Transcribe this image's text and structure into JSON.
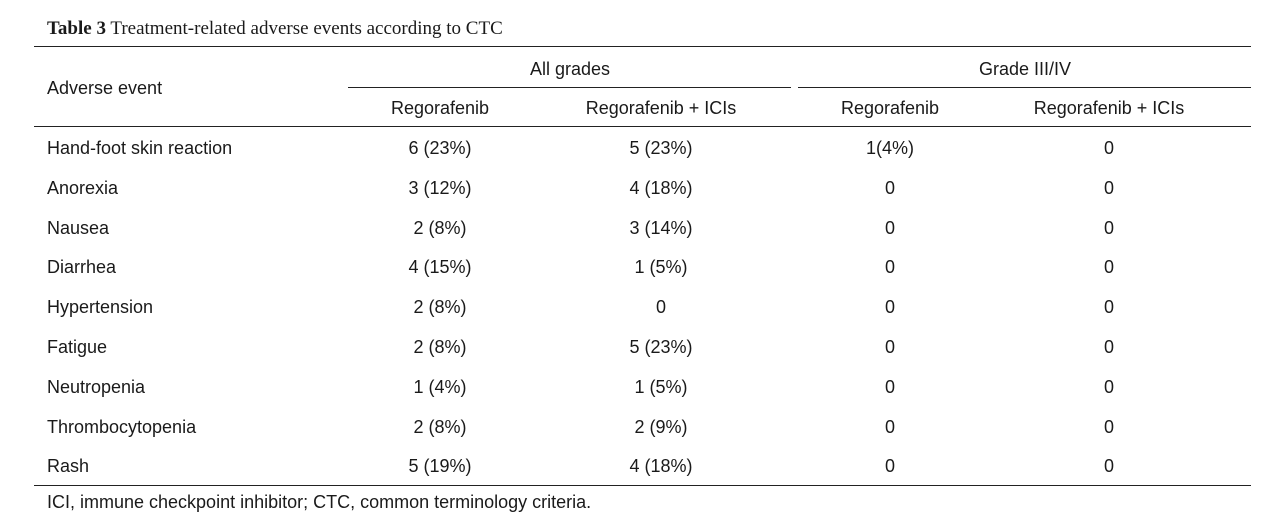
{
  "table": {
    "label": "Table 3",
    "title": "Treatment-related adverse events according to CTC",
    "row_header": "Adverse event",
    "group_headers": [
      "All grades",
      "Grade III/IV"
    ],
    "sub_headers": [
      "Regorafenib",
      "Regorafenib + ICIs",
      "Regorafenib",
      "Regorafenib + ICIs"
    ],
    "rows": [
      {
        "event": "Hand-foot skin reaction",
        "cells": [
          "6 (23%)",
          "5 (23%)",
          "1(4%)",
          "0"
        ]
      },
      {
        "event": "Anorexia",
        "cells": [
          "3 (12%)",
          "4 (18%)",
          "0",
          "0"
        ]
      },
      {
        "event": "Nausea",
        "cells": [
          "2 (8%)",
          "3 (14%)",
          "0",
          "0"
        ]
      },
      {
        "event": "Diarrhea",
        "cells": [
          "4 (15%)",
          "1 (5%)",
          "0",
          "0"
        ]
      },
      {
        "event": "Hypertension",
        "cells": [
          "2 (8%)",
          "0",
          "0",
          "0"
        ]
      },
      {
        "event": "Fatigue",
        "cells": [
          "2 (8%)",
          "5 (23%)",
          "0",
          "0"
        ]
      },
      {
        "event": "Neutropenia",
        "cells": [
          "1 (4%)",
          "1 (5%)",
          "0",
          "0"
        ]
      },
      {
        "event": "Thrombocytopenia",
        "cells": [
          "2 (8%)",
          "2 (9%)",
          "0",
          "0"
        ]
      },
      {
        "event": "Rash",
        "cells": [
          "5 (19%)",
          "4 (18%)",
          "0",
          "0"
        ]
      }
    ],
    "footnote": "ICI, immune checkpoint inhibitor; CTC, common terminology criteria."
  }
}
